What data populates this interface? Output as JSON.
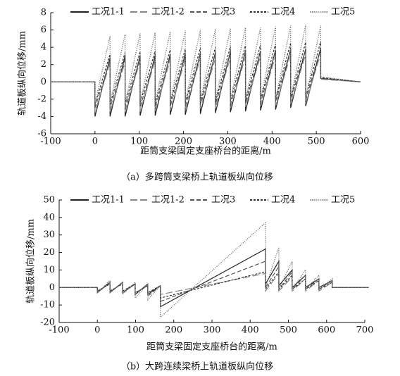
{
  "chart_data": [
    {
      "type": "line",
      "xlabel": "距筒支梁固定支座桥台的距离/m",
      "ylabel": "轨道板纵向位移/mm",
      "caption": "（a）多跨筒支梁桥上轨道板纵向位移",
      "xlim": [
        -100,
        600
      ],
      "ylim": [
        -6,
        8
      ],
      "xticks": [
        -100,
        0,
        100,
        200,
        300,
        400,
        500,
        600
      ],
      "yticks": [
        -6,
        -4,
        -2,
        0,
        2,
        4,
        6,
        8
      ],
      "x": [
        -100,
        0,
        0,
        34,
        34,
        68,
        68,
        102,
        102,
        136,
        136,
        170,
        170,
        204,
        204,
        238,
        238,
        272,
        272,
        306,
        306,
        340,
        340,
        374,
        374,
        408,
        408,
        442,
        442,
        476,
        476,
        510,
        510,
        600
      ],
      "series": [
        {
          "name": "工况1-1",
          "color": "#222222",
          "linestyle": "solid",
          "values": [
            0,
            0,
            -4,
            2.8,
            -4,
            3,
            -4,
            3,
            -3.9,
            3.1,
            -3.9,
            3.2,
            -3.8,
            3.3,
            -3.8,
            3.3,
            -3.7,
            3.4,
            -3.6,
            3.5,
            -3.5,
            3.6,
            -3.4,
            3.6,
            -3.3,
            3.7,
            -3.2,
            3.8,
            -3,
            3.8,
            -2.8,
            3.9,
            0.4,
            0
          ]
        },
        {
          "name": "工况1-2",
          "color": "#888888",
          "linestyle": "longdash",
          "values": [
            0,
            0,
            -3.5,
            2.2,
            -3.5,
            2.3,
            -3.4,
            2.4,
            -3.4,
            2.5,
            -3.3,
            2.5,
            -3.3,
            2.6,
            -3.2,
            2.7,
            -3.1,
            2.7,
            -3,
            2.8,
            -3,
            2.9,
            -2.9,
            3,
            -2.8,
            3,
            -2.7,
            3.1,
            -2.6,
            3.2,
            -2.5,
            3.3,
            0.3,
            0
          ]
        },
        {
          "name": "工况3",
          "color": "#555555",
          "linestyle": "dashed",
          "values": [
            0,
            0,
            -3,
            2.5,
            -3,
            2.6,
            -3,
            2.7,
            -2.9,
            2.8,
            -2.9,
            2.9,
            -2.8,
            3,
            -2.8,
            3.1,
            -2.7,
            3.2,
            -2.6,
            3.3,
            -2.6,
            3.4,
            -2.5,
            3.5,
            -2.4,
            3.6,
            -2.3,
            3.7,
            -2.2,
            3.8,
            -2.1,
            3.9,
            0.4,
            0
          ]
        },
        {
          "name": "工况4",
          "color": "#333333",
          "linestyle": "shortdash",
          "values": [
            0,
            0,
            -2.6,
            3.2,
            -2.6,
            3.4,
            -2.6,
            3.5,
            -2.5,
            3.6,
            -2.5,
            3.7,
            -2.4,
            3.8,
            -2.4,
            3.9,
            -2.3,
            4,
            -2.3,
            4.1,
            -2.2,
            4.2,
            -2.2,
            4.3,
            -2.1,
            4.4,
            -2,
            4.5,
            -1.9,
            4.6,
            -1.8,
            4.7,
            0.5,
            0
          ]
        },
        {
          "name": "工况5",
          "color": "#777777",
          "linestyle": "dotted",
          "values": [
            0,
            0,
            -2.5,
            5.3,
            -2.5,
            5.5,
            -2.5,
            5.6,
            -2.4,
            5.7,
            -2.4,
            5.8,
            -2.3,
            5.9,
            -2.3,
            6,
            -2.2,
            6.1,
            -2.2,
            6.2,
            -2.1,
            6.3,
            -2.1,
            6.3,
            -2,
            6.4,
            -2,
            6.5,
            -1.9,
            6.6,
            -1.8,
            6.5,
            0.6,
            0
          ]
        }
      ]
    },
    {
      "type": "line",
      "xlabel": "距筒支梁固定支座桥台的距离/m",
      "ylabel": "轨道板纵向位移/mm",
      "caption": "（b）大跨连续梁桥上轨道板纵向位移",
      "xlim": [
        -100,
        700
      ],
      "ylim": [
        -20,
        50
      ],
      "xticks": [
        -100,
        0,
        100,
        200,
        300,
        400,
        500,
        600,
        700
      ],
      "yticks": [
        -20,
        -10,
        0,
        10,
        20,
        30,
        40,
        50
      ],
      "x": [
        -100,
        0,
        0,
        33,
        33,
        66,
        66,
        99,
        99,
        132,
        132,
        165,
        165,
        440,
        440,
        475,
        475,
        510,
        510,
        545,
        545,
        580,
        580,
        615,
        615,
        710
      ],
      "series": [
        {
          "name": "工况1-1",
          "color": "#222222",
          "linestyle": "solid",
          "values": [
            0,
            0,
            -3,
            3,
            -3,
            3,
            -3,
            2,
            -4,
            2,
            -4,
            1,
            -11,
            22,
            2,
            15,
            1,
            10,
            0,
            7,
            0,
            5,
            0,
            4,
            0,
            0
          ]
        },
        {
          "name": "工况1-2",
          "color": "#888888",
          "linestyle": "longdash",
          "values": [
            0,
            0,
            -2,
            2,
            -2,
            2,
            -2,
            2,
            -3,
            1,
            -3,
            1,
            -4,
            8,
            -2,
            8,
            -2,
            6,
            -2,
            5,
            -2,
            4,
            -2,
            3,
            0,
            0
          ]
        },
        {
          "name": "工况3",
          "color": "#555555",
          "linestyle": "dashed",
          "values": [
            0,
            0,
            -3,
            3,
            -3,
            3,
            -3,
            2,
            -4,
            2,
            -5,
            1,
            -8,
            15,
            0,
            12,
            -1,
            9,
            -1,
            7,
            -1,
            5,
            -1,
            4,
            0,
            0
          ]
        },
        {
          "name": "工况4",
          "color": "#333333",
          "linestyle": "shortdash",
          "values": [
            0,
            0,
            -2,
            2,
            -2,
            2,
            -2,
            2,
            -3,
            1,
            -3,
            1,
            -6,
            9,
            -1,
            9,
            -1,
            7,
            -1,
            5,
            -1,
            4,
            -1,
            3,
            0,
            0
          ]
        },
        {
          "name": "工况5",
          "color": "#777777",
          "linestyle": "dotted",
          "values": [
            0,
            0,
            -3,
            4,
            -3,
            3,
            -4,
            3,
            -6,
            2,
            -7,
            1,
            -17,
            37,
            0,
            23,
            -1,
            15,
            -1,
            10,
            -1,
            7,
            -1,
            5,
            0,
            0
          ]
        }
      ]
    }
  ]
}
